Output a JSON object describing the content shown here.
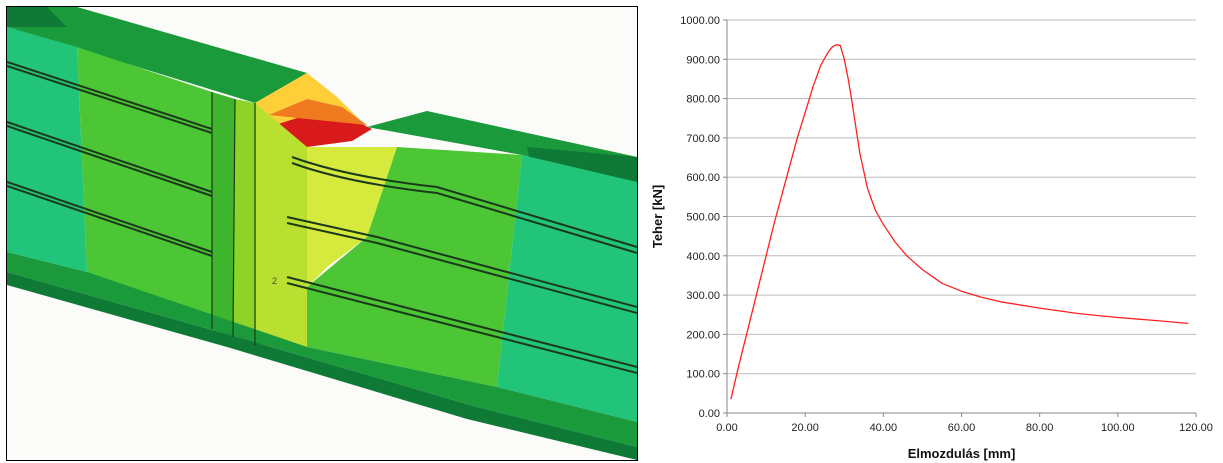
{
  "fem_model": {
    "axis_triad_label": "2"
  },
  "chart_data": {
    "type": "line",
    "xlabel": "Elmozdulás [mm]",
    "ylabel": "Teher [kN]",
    "xlim": [
      0,
      120
    ],
    "ylim": [
      0,
      1000
    ],
    "x_ticks": [
      "0.00",
      "20.00",
      "40.00",
      "60.00",
      "80.00",
      "100.00",
      "120.00"
    ],
    "y_ticks": [
      "0.00",
      "100.00",
      "200.00",
      "300.00",
      "400.00",
      "500.00",
      "600.00",
      "700.00",
      "800.00",
      "900.00",
      "1000.00"
    ],
    "grid": "horizontal",
    "series": [
      {
        "color": "#ff2020",
        "x": [
          1,
          3,
          6,
          9,
          12,
          15,
          18,
          20,
          22,
          24,
          26,
          27,
          28,
          29,
          30,
          31,
          32,
          34,
          36,
          38,
          40,
          43,
          46,
          50,
          55,
          60,
          65,
          70,
          80,
          90,
          100,
          110,
          118
        ],
        "y": [
          35,
          120,
          240,
          360,
          480,
          590,
          700,
          765,
          830,
          885,
          920,
          932,
          937,
          935,
          900,
          850,
          790,
          660,
          570,
          515,
          480,
          435,
          400,
          365,
          330,
          310,
          295,
          283,
          267,
          253,
          243,
          235,
          228
        ]
      }
    ]
  }
}
